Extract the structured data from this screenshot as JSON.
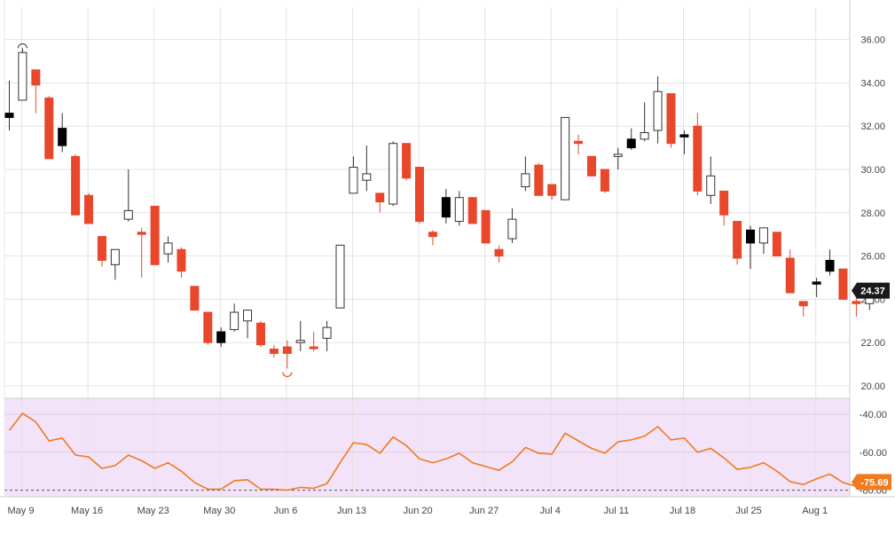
{
  "chart_data": [
    {
      "type": "candlestick",
      "panel": "price",
      "y_axis": {
        "side": "right",
        "ylim": [
          20,
          37
        ],
        "ticks": [
          "36.00",
          "34.00",
          "32.00",
          "30.00",
          "28.00",
          "26.00",
          "24.00",
          "22.00",
          "20.00"
        ]
      },
      "x_labels": [
        "May 9",
        "May 16",
        "May 23",
        "May 30",
        "Jun 6",
        "Jun 13",
        "Jun 20",
        "Jun 27",
        "Jul 4",
        "Jul 11",
        "Jul 18",
        "Jul 25",
        "Aug 1"
      ],
      "last_price_label": "24.37",
      "colors": {
        "up": "#ffffff",
        "down": "#e8472b",
        "up_gap": "#000000",
        "grid": "#e3e3e3",
        "label_bg": "#1a1a1a"
      },
      "candles": [
        {
          "o": 32.6,
          "h": 34.1,
          "l": 31.8,
          "c": 32.4,
          "k": "b"
        },
        {
          "o": 33.2,
          "h": 35.6,
          "l": 33.2,
          "c": 35.4,
          "k": "u"
        },
        {
          "o": 34.6,
          "h": 34.6,
          "l": 32.6,
          "c": 33.9,
          "k": "d"
        },
        {
          "o": 33.3,
          "h": 33.4,
          "l": 30.5,
          "c": 30.5,
          "k": "d"
        },
        {
          "o": 31.9,
          "h": 32.6,
          "l": 30.8,
          "c": 31.1,
          "k": "b"
        },
        {
          "o": 30.6,
          "h": 30.7,
          "l": 27.9,
          "c": 27.9,
          "k": "d"
        },
        {
          "o": 28.8,
          "h": 28.9,
          "l": 27.5,
          "c": 27.5,
          "k": "d"
        },
        {
          "o": 26.9,
          "h": 26.9,
          "l": 25.5,
          "c": 25.8,
          "k": "d"
        },
        {
          "o": 25.6,
          "h": 26.3,
          "l": 24.9,
          "c": 26.3,
          "k": "u"
        },
        {
          "o": 27.7,
          "h": 30.0,
          "l": 27.6,
          "c": 28.1,
          "k": "u"
        },
        {
          "o": 27.1,
          "h": 27.3,
          "l": 25.0,
          "c": 27.0,
          "k": "d"
        },
        {
          "o": 28.3,
          "h": 28.3,
          "l": 25.6,
          "c": 25.6,
          "k": "d"
        },
        {
          "o": 26.1,
          "h": 26.9,
          "l": 25.7,
          "c": 26.6,
          "k": "u"
        },
        {
          "o": 26.3,
          "h": 26.4,
          "l": 25.0,
          "c": 25.3,
          "k": "d"
        },
        {
          "o": 24.6,
          "h": 24.6,
          "l": 23.5,
          "c": 23.5,
          "k": "d"
        },
        {
          "o": 23.4,
          "h": 23.4,
          "l": 21.9,
          "c": 22.0,
          "k": "d"
        },
        {
          "o": 22.5,
          "h": 22.7,
          "l": 21.8,
          "c": 22.0,
          "k": "b"
        },
        {
          "o": 22.6,
          "h": 23.8,
          "l": 22.5,
          "c": 23.4,
          "k": "u"
        },
        {
          "o": 23.0,
          "h": 23.5,
          "l": 22.2,
          "c": 23.5,
          "k": "u"
        },
        {
          "o": 22.9,
          "h": 23.0,
          "l": 21.8,
          "c": 21.9,
          "k": "d"
        },
        {
          "o": 21.7,
          "h": 21.9,
          "l": 21.3,
          "c": 21.5,
          "k": "d"
        },
        {
          "o": 21.8,
          "h": 22.1,
          "l": 20.8,
          "c": 21.5,
          "k": "d"
        },
        {
          "o": 22.0,
          "h": 23.0,
          "l": 21.6,
          "c": 22.1,
          "k": "u"
        },
        {
          "o": 21.8,
          "h": 22.5,
          "l": 21.6,
          "c": 21.8,
          "k": "d"
        },
        {
          "o": 22.2,
          "h": 23.0,
          "l": 21.6,
          "c": 22.7,
          "k": "u"
        },
        {
          "o": 23.6,
          "h": 26.5,
          "l": 23.6,
          "c": 26.5,
          "k": "u"
        },
        {
          "o": 28.9,
          "h": 30.6,
          "l": 28.9,
          "c": 30.1,
          "k": "u"
        },
        {
          "o": 29.5,
          "h": 31.1,
          "l": 29.0,
          "c": 29.8,
          "k": "u"
        },
        {
          "o": 28.9,
          "h": 28.9,
          "l": 28.0,
          "c": 28.5,
          "k": "d"
        },
        {
          "o": 28.4,
          "h": 31.3,
          "l": 28.3,
          "c": 31.2,
          "k": "u"
        },
        {
          "o": 31.2,
          "h": 31.2,
          "l": 29.5,
          "c": 29.6,
          "k": "d"
        },
        {
          "o": 30.1,
          "h": 30.1,
          "l": 27.5,
          "c": 27.6,
          "k": "d"
        },
        {
          "o": 27.1,
          "h": 27.2,
          "l": 26.5,
          "c": 26.9,
          "k": "d"
        },
        {
          "o": 28.7,
          "h": 29.1,
          "l": 27.5,
          "c": 27.8,
          "k": "b"
        },
        {
          "o": 27.6,
          "h": 29.0,
          "l": 27.4,
          "c": 28.7,
          "k": "u"
        },
        {
          "o": 28.7,
          "h": 28.7,
          "l": 27.5,
          "c": 27.5,
          "k": "d"
        },
        {
          "o": 28.1,
          "h": 28.1,
          "l": 26.6,
          "c": 26.6,
          "k": "d"
        },
        {
          "o": 26.3,
          "h": 26.5,
          "l": 25.7,
          "c": 26.0,
          "k": "d"
        },
        {
          "o": 26.8,
          "h": 28.2,
          "l": 26.6,
          "c": 27.7,
          "k": "u"
        },
        {
          "o": 29.2,
          "h": 30.6,
          "l": 29.0,
          "c": 29.8,
          "k": "u"
        },
        {
          "o": 30.2,
          "h": 30.3,
          "l": 28.8,
          "c": 28.8,
          "k": "d"
        },
        {
          "o": 29.3,
          "h": 29.3,
          "l": 28.6,
          "c": 28.8,
          "k": "d"
        },
        {
          "o": 28.6,
          "h": 32.4,
          "l": 28.6,
          "c": 32.4,
          "k": "u"
        },
        {
          "o": 31.3,
          "h": 31.6,
          "l": 30.7,
          "c": 31.2,
          "k": "d"
        },
        {
          "o": 30.6,
          "h": 30.6,
          "l": 29.7,
          "c": 29.7,
          "k": "d"
        },
        {
          "o": 30.0,
          "h": 30.0,
          "l": 28.9,
          "c": 29.0,
          "k": "d"
        },
        {
          "o": 30.6,
          "h": 31.0,
          "l": 30.0,
          "c": 30.7,
          "k": "u"
        },
        {
          "o": 31.4,
          "h": 31.9,
          "l": 30.9,
          "c": 31.0,
          "k": "b"
        },
        {
          "o": 31.4,
          "h": 33.1,
          "l": 31.3,
          "c": 31.7,
          "k": "u"
        },
        {
          "o": 31.8,
          "h": 34.3,
          "l": 31.2,
          "c": 33.6,
          "k": "u"
        },
        {
          "o": 33.5,
          "h": 33.5,
          "l": 31.0,
          "c": 31.2,
          "k": "d"
        },
        {
          "o": 31.6,
          "h": 31.8,
          "l": 30.7,
          "c": 31.5,
          "k": "b"
        },
        {
          "o": 32.0,
          "h": 32.6,
          "l": 28.8,
          "c": 29.0,
          "k": "d"
        },
        {
          "o": 28.8,
          "h": 30.6,
          "l": 28.4,
          "c": 29.7,
          "k": "u"
        },
        {
          "o": 29.0,
          "h": 29.0,
          "l": 27.4,
          "c": 27.9,
          "k": "d"
        },
        {
          "o": 27.6,
          "h": 27.6,
          "l": 25.6,
          "c": 25.9,
          "k": "d"
        },
        {
          "o": 27.2,
          "h": 27.4,
          "l": 25.4,
          "c": 26.6,
          "k": "b"
        },
        {
          "o": 26.6,
          "h": 27.3,
          "l": 26.1,
          "c": 27.3,
          "k": "u"
        },
        {
          "o": 27.1,
          "h": 27.1,
          "l": 26.0,
          "c": 26.0,
          "k": "d"
        },
        {
          "o": 25.9,
          "h": 26.3,
          "l": 24.3,
          "c": 24.3,
          "k": "d"
        },
        {
          "o": 23.9,
          "h": 23.9,
          "l": 23.2,
          "c": 23.7,
          "k": "d"
        },
        {
          "o": 24.8,
          "h": 25.0,
          "l": 24.1,
          "c": 24.7,
          "k": "b"
        },
        {
          "o": 25.8,
          "h": 26.3,
          "l": 25.1,
          "c": 25.3,
          "k": "b"
        },
        {
          "o": 25.4,
          "h": 25.4,
          "l": 24.0,
          "c": 24.0,
          "k": "d"
        },
        {
          "o": 23.9,
          "h": 24.3,
          "l": 23.2,
          "c": 23.8,
          "k": "d"
        },
        {
          "o": 23.8,
          "h": 24.7,
          "l": 23.5,
          "c": 24.4,
          "k": "u"
        }
      ],
      "markers": [
        {
          "type": "high-marker",
          "candle": 1
        },
        {
          "type": "low-marker",
          "candle": 21
        }
      ]
    },
    {
      "type": "line",
      "panel": "indicator",
      "y_axis": {
        "side": "right",
        "ylim": [
          -80.5,
          -36
        ],
        "ticks": [
          "-40.00",
          "-60.00",
          "-80.00"
        ]
      },
      "reference_line": -80,
      "last_value_label": "-75.69",
      "colors": {
        "line": "#f07a1f",
        "background": "#f3e3f9",
        "label_bg": "#f07a1f"
      },
      "values": [
        -48.5,
        -39.5,
        -44,
        -54,
        -52.5,
        -61.5,
        -62.5,
        -68.5,
        -67,
        -61.5,
        -64.5,
        -68.5,
        -65.5,
        -70,
        -76,
        -79.5,
        -79.5,
        -75,
        -74.5,
        -79.5,
        -79.5,
        -80,
        -78.5,
        -79,
        -76.5,
        -65.5,
        -55,
        -56,
        -60.5,
        -52,
        -56.5,
        -63.5,
        -65.5,
        -63.5,
        -60.5,
        -65.5,
        -67.5,
        -69.5,
        -65,
        -57.5,
        -60.5,
        -61,
        -50,
        -54,
        -58,
        -60.5,
        -54.5,
        -53.5,
        -51.5,
        -46.5,
        -53.5,
        -52.5,
        -60,
        -58,
        -63,
        -69,
        -68,
        -65.5,
        -70,
        -75.5,
        -77,
        -74,
        -71.5,
        -76,
        -78,
        -75.7
      ]
    }
  ]
}
